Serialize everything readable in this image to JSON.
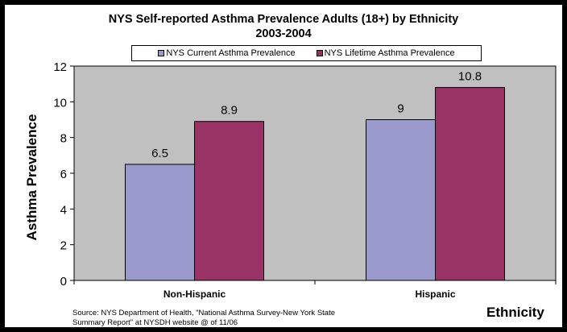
{
  "chart_data": {
    "type": "bar",
    "title_line1": "NYS Self-reported Asthma Prevalence Adults (18+) by Ethnicity",
    "title_line2": "2003-2004",
    "categories": [
      "Non-Hispanic",
      "Hispanic"
    ],
    "series": [
      {
        "name": "NYS Current Asthma Prevalence",
        "values": [
          6.5,
          9
        ],
        "labels": [
          "6.5",
          "9"
        ],
        "color": "#9999cc"
      },
      {
        "name": "NYS Lifetime Asthma Prevalence",
        "values": [
          8.9,
          10.8
        ],
        "labels": [
          "8.9",
          "10.8"
        ],
        "color": "#993366"
      }
    ],
    "xlabel": "Ethnicity",
    "ylabel": "Asthma Prevalence",
    "ylim": [
      0,
      12
    ],
    "yticks": [
      "0",
      "2",
      "4",
      "6",
      "8",
      "10",
      "12"
    ],
    "legend_position": "top",
    "plot_background": "#c0c0c0",
    "grid": false
  },
  "source_line1": "Source: NYS Department of Health, \"National Asthma Survey-New York State",
  "source_line2": "Summary Report\" at NYSDH website @ of 11/06"
}
